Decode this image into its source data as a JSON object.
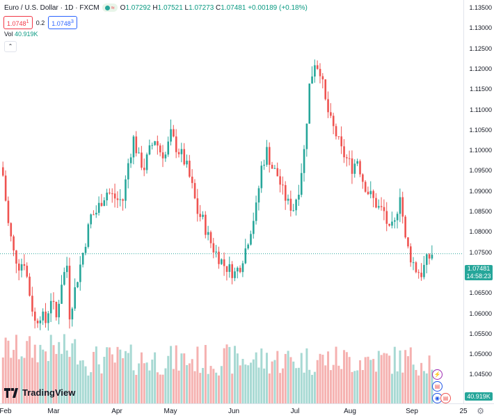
{
  "legend": {
    "symbol": "Euro / U.S. Dollar · 1D · FXCM",
    "open_label": "O",
    "open": "1.07292",
    "high_label": "H",
    "high": "1.07521",
    "low_label": "L",
    "low": "1.07273",
    "close_label": "C",
    "close": "1.07481",
    "change": "+0.00189 (+0.18%)"
  },
  "trade": {
    "sell": "1.0748",
    "sell_sup": "1",
    "spread": "0.2",
    "buy": "1.0748",
    "buy_sup": "3"
  },
  "volume": {
    "label": "Vol",
    "value": "40.919K"
  },
  "price_axis": {
    "ticks": [
      "1.13500",
      "1.13000",
      "1.12500",
      "1.12000",
      "1.11500",
      "1.11000",
      "1.10500",
      "1.10000",
      "1.09500",
      "1.09000",
      "1.08500",
      "1.08000",
      "1.07500",
      "1.07000",
      "1.06500",
      "1.06000",
      "1.05500",
      "1.05000",
      "1.04500"
    ],
    "current_price": "1.07481",
    "countdown": "14:58:23",
    "volume_tag": "40.919K"
  },
  "time_axis": {
    "ticks": [
      "Feb",
      "Mar",
      "Apr",
      "May",
      "Jun",
      "Jul",
      "Aug",
      "Sep",
      "25"
    ]
  },
  "branding": {
    "logo_text": "TradingView"
  },
  "colors": {
    "up": "#26a69a",
    "down": "#ef5350",
    "vol_up": "#a7d9d3",
    "vol_down": "#f5b1b0"
  },
  "chart_data": {
    "type": "candlestick",
    "title": "Euro / U.S. Dollar · 1D · FXCM",
    "ylim": [
      1.0425,
      1.1375
    ],
    "x_range": [
      "Feb",
      "Sep"
    ],
    "close_path": [
      [
        0,
        1.094
      ],
      [
        2,
        1.082
      ],
      [
        4,
        1.075
      ],
      [
        6,
        1.072
      ],
      [
        8,
        1.073
      ],
      [
        10,
        1.065
      ],
      [
        12,
        1.058
      ],
      [
        14,
        1.06
      ],
      [
        16,
        1.058
      ],
      [
        18,
        1.064
      ],
      [
        20,
        1.059
      ],
      [
        22,
        1.068
      ],
      [
        24,
        1.072
      ],
      [
        25,
        1.06
      ],
      [
        27,
        1.066
      ],
      [
        29,
        1.072
      ],
      [
        31,
        1.078
      ],
      [
        33,
        1.084
      ],
      [
        35,
        1.085
      ],
      [
        37,
        1.088
      ],
      [
        39,
        1.09
      ],
      [
        41,
        1.089
      ],
      [
        43,
        1.088
      ],
      [
        45,
        1.088
      ],
      [
        47,
        1.097
      ],
      [
        49,
        1.103
      ],
      [
        51,
        1.098
      ],
      [
        53,
        1.096
      ],
      [
        55,
        1.1
      ],
      [
        57,
        1.103
      ],
      [
        59,
        1.1
      ],
      [
        61,
        1.099
      ],
      [
        63,
        1.104
      ],
      [
        65,
        1.101
      ],
      [
        67,
        1.099
      ],
      [
        69,
        1.096
      ],
      [
        71,
        1.091
      ],
      [
        73,
        1.085
      ],
      [
        75,
        1.083
      ],
      [
        77,
        1.079
      ],
      [
        79,
        1.076
      ],
      [
        81,
        1.074
      ],
      [
        83,
        1.072
      ],
      [
        85,
        1.071
      ],
      [
        87,
        1.07
      ],
      [
        89,
        1.072
      ],
      [
        91,
        1.076
      ],
      [
        93,
        1.081
      ],
      [
        95,
        1.086
      ],
      [
        97,
        1.096
      ],
      [
        99,
        1.1
      ],
      [
        101,
        1.096
      ],
      [
        103,
        1.094
      ],
      [
        105,
        1.09
      ],
      [
        107,
        1.087
      ],
      [
        109,
        1.086
      ],
      [
        111,
        1.091
      ],
      [
        113,
        1.1
      ],
      [
        115,
        1.116
      ],
      [
        117,
        1.122
      ],
      [
        119,
        1.12
      ],
      [
        121,
        1.112
      ],
      [
        123,
        1.107
      ],
      [
        125,
        1.104
      ],
      [
        127,
        1.1
      ],
      [
        129,
        1.098
      ],
      [
        131,
        1.096
      ],
      [
        133,
        1.098
      ],
      [
        135,
        1.093
      ],
      [
        137,
        1.09
      ],
      [
        139,
        1.088
      ],
      [
        141,
        1.086
      ],
      [
        143,
        1.085
      ],
      [
        145,
        1.08
      ],
      [
        147,
        1.082
      ],
      [
        149,
        1.09
      ],
      [
        151,
        1.078
      ],
      [
        153,
        1.074
      ],
      [
        155,
        1.071
      ],
      [
        157,
        1.07
      ],
      [
        159,
        1.073
      ],
      [
        161,
        1.0748
      ]
    ]
  }
}
